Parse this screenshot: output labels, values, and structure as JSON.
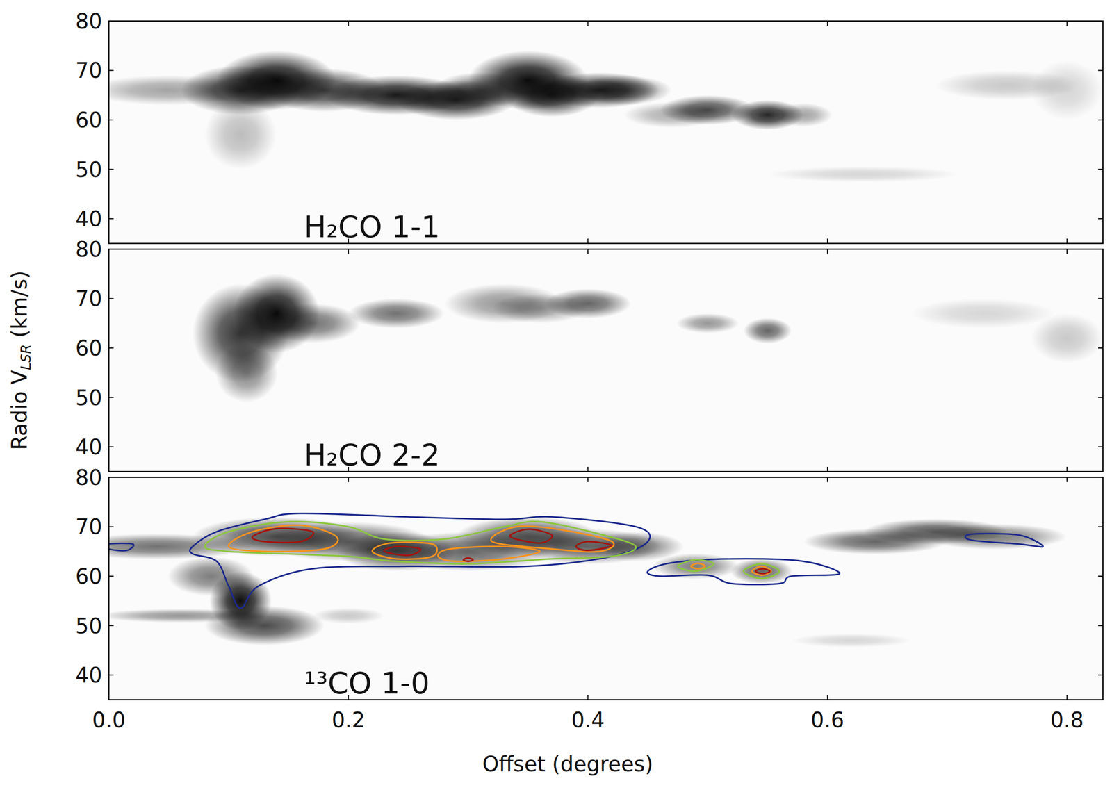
{
  "chart_data": [
    {
      "type": "pv_image",
      "label": "H₂CO 1-1",
      "xlim": [
        0,
        0.83
      ],
      "ylim": [
        35,
        80
      ],
      "yticks": [
        40,
        50,
        60,
        70,
        80
      ],
      "xticks": [
        {
          "value": 0,
          "label": "0.0"
        },
        {
          "value": 0.2,
          "label": "0.2"
        },
        {
          "value": 0.4,
          "label": "0.4"
        },
        {
          "value": 0.6,
          "label": "0.6"
        },
        {
          "value": 0.8,
          "label": "0.8"
        }
      ],
      "tick_labels": "y",
      "features": {
        "offset": [
          0.05,
          0.11,
          0.14,
          0.18,
          0.24,
          0.29,
          0.31,
          0.35,
          0.37,
          0.41,
          0.11,
          0.47,
          0.5,
          0.55,
          0.58,
          0.63,
          0.75,
          0.8,
          0.43
        ],
        "velocity": [
          66,
          66,
          68,
          66,
          65,
          64,
          66,
          68,
          65,
          66,
          57,
          61,
          62,
          61,
          61,
          49,
          67,
          66,
          66
        ],
        "width": [
          0.035,
          0.025,
          0.025,
          0.025,
          0.03,
          0.025,
          0.02,
          0.025,
          0.02,
          0.025,
          0.015,
          0.02,
          0.02,
          0.015,
          0.012,
          0.04,
          0.03,
          0.015,
          0.02
        ],
        "height": [
          1.5,
          2.5,
          3,
          2.2,
          2,
          2,
          1.8,
          3,
          2.2,
          1.8,
          3.5,
          1.3,
          1.5,
          1.5,
          1.2,
          0.8,
          1.5,
          3,
          1.5
        ],
        "intensity": [
          0.35,
          0.8,
          0.95,
          0.75,
          0.9,
          0.85,
          0.6,
          0.95,
          0.85,
          0.85,
          0.25,
          0.3,
          0.7,
          0.85,
          0.35,
          0.15,
          0.2,
          0.15,
          0.5
        ]
      },
      "contours": []
    },
    {
      "type": "pv_image",
      "label": "H₂CO 2-2",
      "xlim": [
        0,
        0.83
      ],
      "ylim": [
        35,
        80
      ],
      "yticks": [
        40,
        50,
        60,
        70,
        80
      ],
      "xticks": [
        {
          "value": 0,
          "label": "0.0"
        },
        {
          "value": 0.2,
          "label": "0.2"
        },
        {
          "value": 0.4,
          "label": "0.4"
        },
        {
          "value": 0.6,
          "label": "0.6"
        },
        {
          "value": 0.8,
          "label": "0.8"
        }
      ],
      "tick_labels": "y",
      "ylabel": {
        "main": "Radio V",
        "sub": "LSR",
        "unit": " (km/s)"
      },
      "features": {
        "offset": [
          0.11,
          0.14,
          0.115,
          0.17,
          0.24,
          0.33,
          0.36,
          0.4,
          0.5,
          0.55,
          0.8,
          0.73
        ],
        "velocity": [
          63,
          67,
          55,
          65,
          67,
          69,
          68,
          69,
          65,
          63.5,
          62,
          67
        ],
        "width": [
          0.02,
          0.018,
          0.013,
          0.02,
          0.02,
          0.025,
          0.02,
          0.018,
          0.013,
          0.01,
          0.015,
          0.03
        ],
        "height": [
          5,
          4,
          3,
          2,
          1.5,
          2,
          1.5,
          1.5,
          1,
          1.3,
          2.5,
          1.5
        ],
        "intensity": [
          0.8,
          0.95,
          0.45,
          0.55,
          0.55,
          0.4,
          0.35,
          0.6,
          0.4,
          0.6,
          0.2,
          0.15
        ]
      },
      "contours": []
    },
    {
      "type": "pv_image",
      "label": "¹³CO 1-0",
      "xlim": [
        0,
        0.83
      ],
      "ylim": [
        35,
        80
      ],
      "yticks": [
        40,
        50,
        60,
        70,
        80
      ],
      "xticks": [
        {
          "value": 0,
          "label": "0.0"
        },
        {
          "value": 0.2,
          "label": "0.2"
        },
        {
          "value": 0.4,
          "label": "0.4"
        },
        {
          "value": 0.6,
          "label": "0.6"
        },
        {
          "value": 0.8,
          "label": "0.8"
        }
      ],
      "xlabel": "Offset (degrees)",
      "features": {
        "offset": [
          0.04,
          0.14,
          0.2,
          0.24,
          0.3,
          0.35,
          0.4,
          0.11,
          0.085,
          0.13,
          0.06,
          0.2,
          0.49,
          0.545,
          0.64,
          0.69,
          0.74,
          0.62,
          0.44
        ],
        "velocity": [
          66,
          68,
          67,
          65,
          65,
          68,
          66,
          55,
          60,
          50,
          52,
          52,
          62,
          61,
          67,
          69,
          68,
          47,
          66
        ],
        "width": [
          0.04,
          0.035,
          0.035,
          0.025,
          0.035,
          0.03,
          0.03,
          0.013,
          0.018,
          0.025,
          0.035,
          0.015,
          0.018,
          0.013,
          0.03,
          0.03,
          0.03,
          0.025,
          0.02
        ],
        "height": [
          1.3,
          2,
          2,
          2,
          2,
          2,
          1.8,
          3,
          2,
          2,
          0.7,
          0.8,
          1.3,
          1.3,
          1.3,
          1.3,
          1.3,
          0.7,
          1.5
        ],
        "intensity": [
          0.55,
          0.7,
          0.6,
          0.7,
          0.6,
          0.7,
          0.6,
          0.95,
          0.5,
          0.7,
          0.4,
          0.2,
          0.5,
          0.6,
          0.6,
          0.65,
          0.5,
          0.15,
          0.5
        ]
      },
      "contours": [
        {
          "color": "#1c2a8c",
          "points": [
            [
              0.07,
              66
            ],
            [
              0.09,
              69
            ],
            [
              0.13,
              71.5
            ],
            [
              0.16,
              72.7
            ],
            [
              0.25,
              72
            ],
            [
              0.33,
              71.5
            ],
            [
              0.37,
              72
            ],
            [
              0.44,
              70
            ],
            [
              0.45,
              67
            ],
            [
              0.42,
              64
            ],
            [
              0.35,
              62
            ],
            [
              0.25,
              62
            ],
            [
              0.17,
              61.5
            ],
            [
              0.125,
              58
            ],
            [
              0.11,
              53.5
            ],
            [
              0.1,
              58
            ],
            [
              0.09,
              63
            ],
            [
              0.07,
              64.5
            ]
          ]
        },
        {
          "color": "#1c2a8c",
          "points": [
            [
              0.0,
              66.5
            ],
            [
              0.02,
              66.5
            ],
            [
              0.015,
              65.2
            ],
            [
              0.0,
              65.5
            ]
          ]
        },
        {
          "color": "#1c2a8c",
          "points": [
            [
              0.45,
              61
            ],
            [
              0.47,
              62.7
            ],
            [
              0.52,
              63.5
            ],
            [
              0.58,
              63
            ],
            [
              0.61,
              60.5
            ],
            [
              0.57,
              60
            ],
            [
              0.56,
              58.5
            ],
            [
              0.52,
              58.5
            ],
            [
              0.5,
              60.2
            ],
            [
              0.46,
              60
            ]
          ]
        },
        {
          "color": "#1c2a8c",
          "points": [
            [
              0.72,
              68.5
            ],
            [
              0.76,
              68.3
            ],
            [
              0.78,
              66
            ],
            [
              0.76,
              66.5
            ],
            [
              0.72,
              67.3
            ]
          ]
        },
        {
          "color": "#8cc63f",
          "points": [
            [
              0.08,
              66
            ],
            [
              0.1,
              69
            ],
            [
              0.15,
              71
            ],
            [
              0.2,
              70
            ],
            [
              0.23,
              67.5
            ],
            [
              0.28,
              67.5
            ],
            [
              0.33,
              70
            ],
            [
              0.36,
              71
            ],
            [
              0.41,
              68.5
            ],
            [
              0.44,
              66
            ],
            [
              0.42,
              64
            ],
            [
              0.37,
              63.5
            ],
            [
              0.3,
              62.5
            ],
            [
              0.24,
              63
            ],
            [
              0.2,
              64
            ],
            [
              0.15,
              64.5
            ],
            [
              0.1,
              65
            ]
          ]
        },
        {
          "color": "#8cc63f",
          "points": [
            [
              0.475,
              62
            ],
            [
              0.49,
              63.3
            ],
            [
              0.505,
              62.5
            ],
            [
              0.49,
              61
            ]
          ]
        },
        {
          "color": "#8cc63f",
          "points": [
            [
              0.53,
              61
            ],
            [
              0.545,
              62.5
            ],
            [
              0.56,
              61
            ],
            [
              0.545,
              59.5
            ]
          ]
        },
        {
          "color": "#f7931e",
          "points": [
            [
              0.1,
              66
            ],
            [
              0.12,
              69
            ],
            [
              0.16,
              70.3
            ],
            [
              0.19,
              68
            ],
            [
              0.18,
              65.5
            ],
            [
              0.13,
              65
            ]
          ]
        },
        {
          "color": "#f7931e",
          "points": [
            [
              0.22,
              65
            ],
            [
              0.235,
              66.7
            ],
            [
              0.27,
              66.5
            ],
            [
              0.27,
              64
            ],
            [
              0.24,
              63.5
            ]
          ]
        },
        {
          "color": "#f7931e",
          "points": [
            [
              0.275,
              64
            ],
            [
              0.285,
              65.5
            ],
            [
              0.33,
              66
            ],
            [
              0.36,
              65
            ],
            [
              0.33,
              63.5
            ],
            [
              0.29,
              63
            ]
          ]
        },
        {
          "color": "#f7931e",
          "points": [
            [
              0.32,
              67
            ],
            [
              0.34,
              70
            ],
            [
              0.38,
              69.3
            ],
            [
              0.42,
              67
            ],
            [
              0.41,
              65
            ],
            [
              0.37,
              65.5
            ]
          ]
        },
        {
          "color": "#f7931e",
          "points": [
            [
              0.486,
              62
            ],
            [
              0.492,
              62.6
            ],
            [
              0.498,
              62
            ],
            [
              0.492,
              61.5
            ]
          ]
        },
        {
          "color": "#f7931e",
          "points": [
            [
              0.537,
              61
            ],
            [
              0.545,
              62
            ],
            [
              0.553,
              61
            ],
            [
              0.545,
              60.2
            ]
          ]
        },
        {
          "color": "#a3140f",
          "points": [
            [
              0.12,
              68
            ],
            [
              0.14,
              69.6
            ],
            [
              0.17,
              69
            ],
            [
              0.16,
              67
            ],
            [
              0.13,
              67
            ]
          ]
        },
        {
          "color": "#a3140f",
          "points": [
            [
              0.23,
              65
            ],
            [
              0.24,
              66
            ],
            [
              0.26,
              65.5
            ],
            [
              0.25,
              64.2
            ]
          ]
        },
        {
          "color": "#a3140f",
          "points": [
            [
              0.335,
              68
            ],
            [
              0.35,
              69.5
            ],
            [
              0.37,
              68.3
            ],
            [
              0.36,
              66.7
            ]
          ]
        },
        {
          "color": "#a3140f",
          "points": [
            [
              0.39,
              66
            ],
            [
              0.4,
              67
            ],
            [
              0.42,
              66.2
            ],
            [
              0.4,
              65.2
            ]
          ]
        },
        {
          "color": "#a3140f",
          "points": [
            [
              0.296,
              63.3
            ],
            [
              0.3,
              63.7
            ],
            [
              0.304,
              63.3
            ],
            [
              0.3,
              63
            ]
          ]
        },
        {
          "color": "#a3140f",
          "points": [
            [
              0.54,
              61
            ],
            [
              0.546,
              61.5
            ],
            [
              0.552,
              61
            ],
            [
              0.546,
              60.5
            ]
          ]
        }
      ]
    }
  ]
}
